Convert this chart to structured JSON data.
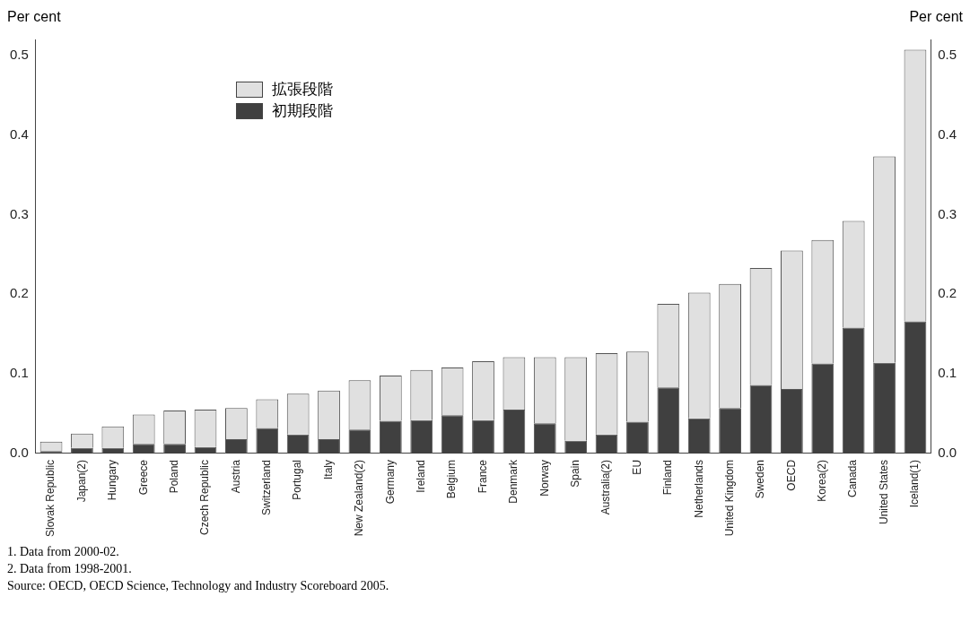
{
  "chart_data": {
    "type": "bar",
    "stacked": true,
    "categories": [
      "Slovak Republic",
      "Japan(2)",
      "Hungary",
      "Greece",
      "Poland",
      "Czech Republic",
      "Austria",
      "Switzerland",
      "Portugal",
      "Italy",
      "New Zealand(2)",
      "Germany",
      "Ireland",
      "Belgium",
      "France",
      "Denmark",
      "Norway",
      "Spain",
      "Australia(2)",
      "EU",
      "Finland",
      "Netherlands",
      "United Kingdom",
      "Sweden",
      "OECD",
      "Korea(2)",
      "Canada",
      "United States",
      "Iceland(1)"
    ],
    "series": [
      {
        "name": "初期段階",
        "color": "#404040",
        "values": [
          0.003,
          0.007,
          0.007,
          0.012,
          0.012,
          0.008,
          0.018,
          0.032,
          0.024,
          0.018,
          0.03,
          0.041,
          0.042,
          0.048,
          0.042,
          0.055,
          0.038,
          0.016,
          0.024,
          0.04,
          0.083,
          0.044,
          0.057,
          0.086,
          0.081,
          0.113,
          0.158,
          0.114,
          0.166
        ]
      },
      {
        "name": "拡張段階",
        "color": "#e0e0e0",
        "values": [
          0.012,
          0.018,
          0.027,
          0.037,
          0.042,
          0.047,
          0.039,
          0.036,
          0.051,
          0.061,
          0.062,
          0.057,
          0.063,
          0.06,
          0.074,
          0.066,
          0.083,
          0.105,
          0.102,
          0.088,
          0.105,
          0.158,
          0.156,
          0.147,
          0.174,
          0.155,
          0.134,
          0.259,
          0.341
        ]
      }
    ],
    "ylabel": "Per cent",
    "y2label": "Per cent",
    "ylim": [
      0,
      0.52
    ],
    "yticks": [
      {
        "value": 0,
        "label": "0.0"
      },
      0.1,
      0.2,
      0.3,
      0.4,
      0.5
    ],
    "y2lim": [
      0,
      0.52
    ],
    "y2ticks": [
      {
        "value": 0,
        "label": "0.0"
      },
      0.1,
      0.2,
      0.3,
      0.4,
      0.5
    ],
    "legend": "top left",
    "grid": false,
    "annotations": [
      "1.  Data from 2000-02.",
      "2.  Data from 1998-2001.",
      "Source: OECD, OECD Science, Technology and Industry Scoreboard 2005."
    ]
  }
}
